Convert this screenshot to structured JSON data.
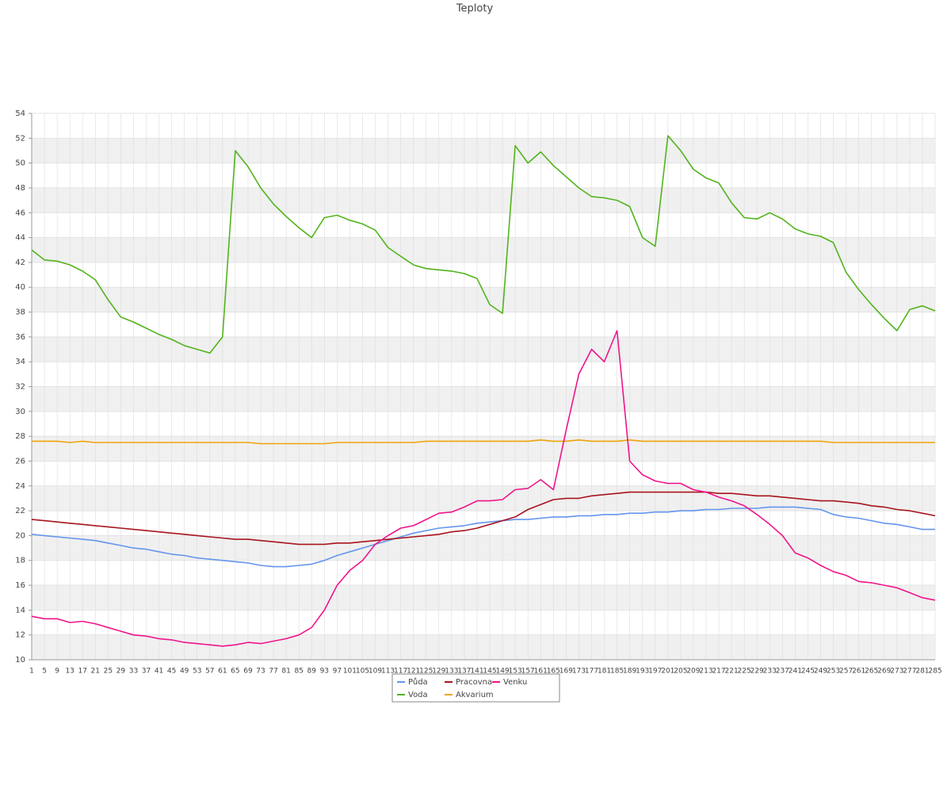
{
  "chart_data": {
    "type": "line",
    "title": "Teploty",
    "categories": [
      1,
      5,
      9,
      13,
      17,
      21,
      25,
      29,
      33,
      37,
      41,
      45,
      49,
      53,
      57,
      61,
      65,
      69,
      73,
      77,
      81,
      85,
      89,
      93,
      97,
      101,
      105,
      109,
      113,
      117,
      121,
      125,
      129,
      133,
      137,
      141,
      145,
      149,
      153,
      157,
      161,
      165,
      169,
      173,
      177,
      181,
      185,
      189,
      193,
      197,
      201,
      205,
      209,
      213,
      217,
      221,
      225,
      229,
      233,
      237,
      241,
      245,
      249,
      253,
      257,
      261,
      265,
      269,
      273,
      277,
      281,
      285
    ],
    "ylim": [
      10,
      54
    ],
    "yticks": [
      10,
      12,
      14,
      16,
      18,
      20,
      22,
      24,
      26,
      28,
      30,
      32,
      34,
      36,
      38,
      40,
      42,
      44,
      46,
      48,
      50,
      52,
      54
    ],
    "grid": true,
    "legend": "bottom",
    "series": [
      {
        "name": "Půda",
        "color": "#6495ed",
        "values": [
          20.1,
          20.0,
          19.9,
          19.8,
          19.7,
          19.6,
          19.4,
          19.2,
          19.0,
          18.9,
          18.7,
          18.5,
          18.4,
          18.2,
          18.1,
          18.0,
          17.9,
          17.8,
          17.6,
          17.5,
          17.5,
          17.6,
          17.7,
          18.0,
          18.4,
          18.7,
          19.0,
          19.3,
          19.6,
          19.9,
          20.2,
          20.4,
          20.6,
          20.7,
          20.8,
          21.0,
          21.1,
          21.2,
          21.3,
          21.3,
          21.4,
          21.5,
          21.5,
          21.6,
          21.6,
          21.7,
          21.7,
          21.8,
          21.8,
          21.9,
          21.9,
          22.0,
          22.0,
          22.1,
          22.1,
          22.2,
          22.2,
          22.2,
          22.3,
          22.3,
          22.3,
          22.2,
          22.1,
          21.7,
          21.5,
          21.4,
          21.2,
          21.0,
          20.9,
          20.7,
          20.5,
          20.5
        ]
      },
      {
        "name": "Voda",
        "color": "#52b41c",
        "values": [
          43.0,
          42.2,
          42.1,
          41.8,
          41.3,
          40.6,
          39.0,
          37.6,
          37.2,
          36.7,
          36.2,
          35.8,
          35.3,
          35.0,
          34.7,
          36.0,
          51.0,
          49.7,
          48.0,
          46.7,
          45.7,
          44.8,
          44.0,
          45.6,
          45.8,
          45.4,
          45.1,
          44.6,
          43.2,
          42.5,
          41.8,
          41.5,
          41.4,
          41.3,
          41.1,
          40.7,
          38.6,
          37.9,
          51.4,
          50.0,
          50.9,
          49.8,
          48.9,
          48.0,
          47.3,
          47.2,
          47.0,
          46.5,
          44.0,
          43.3,
          52.2,
          51.0,
          49.5,
          48.8,
          48.4,
          46.8,
          45.6,
          45.5,
          46.0,
          45.5,
          44.7,
          44.3,
          44.1,
          43.6,
          41.2,
          39.8,
          38.6,
          37.5,
          36.5,
          38.2,
          38.5,
          38.1
        ]
      },
      {
        "name": "Pracovna",
        "color": "#a8141e",
        "values": [
          21.3,
          21.2,
          21.1,
          21.0,
          20.9,
          20.8,
          20.7,
          20.6,
          20.5,
          20.4,
          20.3,
          20.2,
          20.1,
          20.0,
          19.9,
          19.8,
          19.7,
          19.7,
          19.6,
          19.5,
          19.4,
          19.3,
          19.3,
          19.3,
          19.4,
          19.4,
          19.5,
          19.6,
          19.7,
          19.8,
          19.9,
          20.0,
          20.1,
          20.3,
          20.4,
          20.6,
          20.9,
          21.2,
          21.5,
          22.1,
          22.5,
          22.9,
          23.0,
          23.0,
          23.2,
          23.3,
          23.4,
          23.5,
          23.5,
          23.5,
          23.5,
          23.5,
          23.5,
          23.5,
          23.4,
          23.4,
          23.3,
          23.2,
          23.2,
          23.1,
          23.0,
          22.9,
          22.8,
          22.8,
          22.7,
          22.6,
          22.4,
          22.3,
          22.1,
          22.0,
          21.8,
          21.6
        ]
      },
      {
        "name": "Akvarium",
        "color": "#f0a30a",
        "values": [
          27.6,
          27.6,
          27.6,
          27.5,
          27.6,
          27.5,
          27.5,
          27.5,
          27.5,
          27.5,
          27.5,
          27.5,
          27.5,
          27.5,
          27.5,
          27.5,
          27.5,
          27.5,
          27.4,
          27.4,
          27.4,
          27.4,
          27.4,
          27.4,
          27.5,
          27.5,
          27.5,
          27.5,
          27.5,
          27.5,
          27.5,
          27.6,
          27.6,
          27.6,
          27.6,
          27.6,
          27.6,
          27.6,
          27.6,
          27.6,
          27.7,
          27.6,
          27.6,
          27.7,
          27.6,
          27.6,
          27.6,
          27.7,
          27.6,
          27.6,
          27.6,
          27.6,
          27.6,
          27.6,
          27.6,
          27.6,
          27.6,
          27.6,
          27.6,
          27.6,
          27.6,
          27.6,
          27.6,
          27.5,
          27.5,
          27.5,
          27.5,
          27.5,
          27.5,
          27.5,
          27.5,
          27.5
        ]
      },
      {
        "name": "Venku",
        "color": "#f0148c",
        "values": [
          13.5,
          13.3,
          13.3,
          13.0,
          13.1,
          12.9,
          12.6,
          12.3,
          12.0,
          11.9,
          11.7,
          11.6,
          11.4,
          11.3,
          11.2,
          11.1,
          11.2,
          11.4,
          11.3,
          11.5,
          11.7,
          12.0,
          12.6,
          14.0,
          16.0,
          17.2,
          18.0,
          19.3,
          20.0,
          20.6,
          20.8,
          21.3,
          21.8,
          21.9,
          22.3,
          22.8,
          22.8,
          22.9,
          23.7,
          23.8,
          24.5,
          23.7,
          28.5,
          33.0,
          35.0,
          34.0,
          36.5,
          26.0,
          24.9,
          24.4,
          24.2,
          24.2,
          23.7,
          23.5,
          23.1,
          22.8,
          22.4,
          21.7,
          20.9,
          20.0,
          18.6,
          18.2,
          17.6,
          17.1,
          16.8,
          16.3,
          16.2,
          16.0,
          15.8,
          15.4,
          15.0,
          14.8
        ]
      }
    ]
  }
}
